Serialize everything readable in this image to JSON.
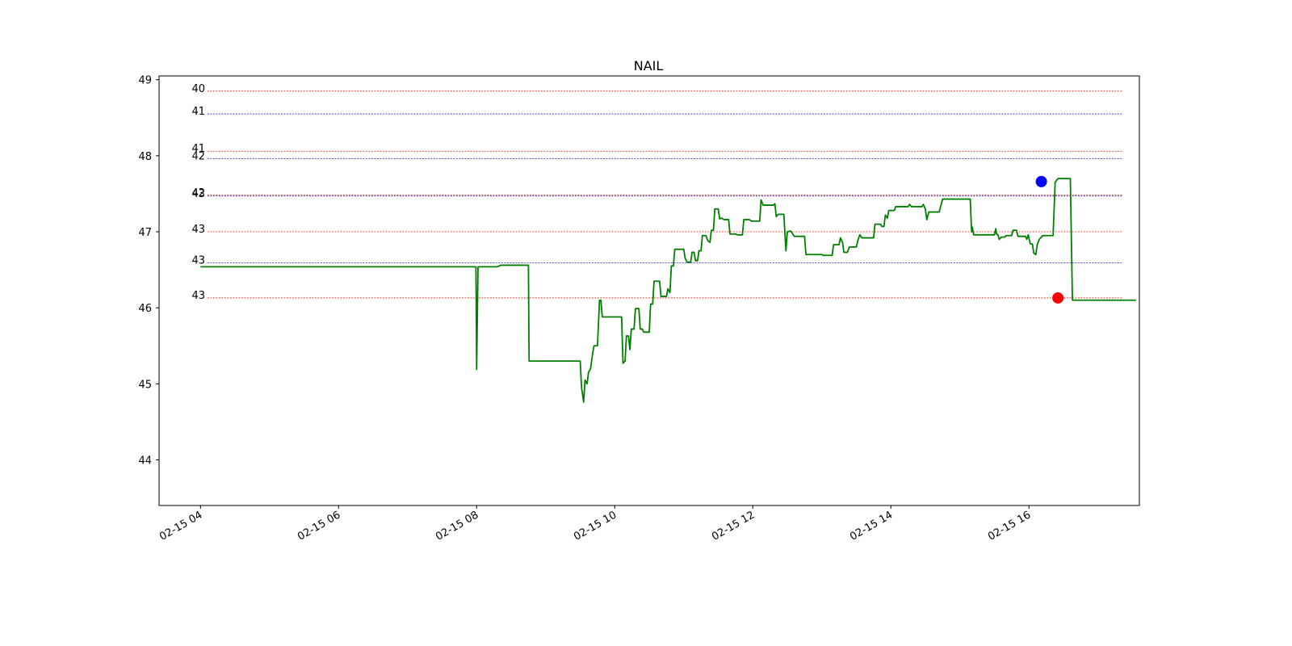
{
  "chart_data": {
    "type": "line",
    "title": "NAIL",
    "xlabel": "",
    "ylabel": "",
    "x_axis": {
      "type": "time",
      "date": "2025-02-15",
      "range_hours": [
        3.4,
        17.6
      ],
      "ticks": [
        {
          "hour": 4,
          "label": "02-15 04"
        },
        {
          "hour": 6,
          "label": "02-15 06"
        },
        {
          "hour": 8,
          "label": "02-15 08"
        },
        {
          "hour": 10,
          "label": "02-15 10"
        },
        {
          "hour": 12,
          "label": "02-15 12"
        },
        {
          "hour": 14,
          "label": "02-15 14"
        },
        {
          "hour": 16,
          "label": "02-15 16"
        }
      ]
    },
    "y_axis": {
      "range": [
        43.4,
        49.05
      ],
      "ticks": [
        44,
        45,
        46,
        47,
        48,
        49
      ]
    },
    "grid": false,
    "levels": [
      {
        "value": 48.85,
        "label": "40",
        "color": "#e0201b",
        "label_dy": 0
      },
      {
        "value": 48.55,
        "label": "41",
        "color": "#1f1fbf",
        "label_dy": 0
      },
      {
        "value": 48.06,
        "label": "41",
        "color": "#e0201b",
        "label_dy": 0
      },
      {
        "value": 47.96,
        "label": "42",
        "color": "#1f1fbf",
        "label_dy": 0
      },
      {
        "value": 47.48,
        "label": "42",
        "color": "#e0201b",
        "label_dy": 0
      },
      {
        "value": 47.47,
        "label": "43",
        "color": "#1f1fbf",
        "label_dy": 0
      },
      {
        "value": 47.0,
        "label": "43",
        "color": "#e0201b",
        "label_dy": 0
      },
      {
        "value": 46.59,
        "label": "43",
        "color": "#1f1fbf",
        "label_dy": 0
      },
      {
        "value": 46.13,
        "label": "43",
        "color": "#e0201b",
        "label_dy": 0
      }
    ],
    "series": [
      {
        "color": "#008000",
        "points": [
          [
            4.0,
            46.54
          ],
          [
            7.99,
            46.54
          ],
          [
            8.0,
            45.19
          ],
          [
            8.02,
            46.54
          ],
          [
            8.3,
            46.54
          ],
          [
            8.35,
            46.56
          ],
          [
            8.75,
            46.56
          ],
          [
            8.76,
            45.3
          ],
          [
            9.5,
            45.3
          ],
          [
            9.52,
            44.95
          ],
          [
            9.55,
            44.76
          ],
          [
            9.57,
            45.05
          ],
          [
            9.6,
            45.0
          ],
          [
            9.62,
            45.15
          ],
          [
            9.65,
            45.2
          ],
          [
            9.68,
            45.4
          ],
          [
            9.7,
            45.5
          ],
          [
            9.75,
            45.5
          ],
          [
            9.78,
            46.1
          ],
          [
            9.8,
            46.1
          ],
          [
            9.82,
            45.88
          ],
          [
            10.1,
            45.88
          ],
          [
            10.12,
            45.27
          ],
          [
            10.15,
            45.3
          ],
          [
            10.17,
            45.63
          ],
          [
            10.2,
            45.63
          ],
          [
            10.22,
            45.45
          ],
          [
            10.24,
            45.72
          ],
          [
            10.28,
            45.72
          ],
          [
            10.3,
            45.99
          ],
          [
            10.35,
            45.99
          ],
          [
            10.37,
            45.72
          ],
          [
            10.4,
            45.72
          ],
          [
            10.42,
            45.68
          ],
          [
            10.5,
            45.68
          ],
          [
            10.52,
            46.05
          ],
          [
            10.55,
            46.05
          ],
          [
            10.57,
            46.35
          ],
          [
            10.65,
            46.35
          ],
          [
            10.67,
            46.15
          ],
          [
            10.75,
            46.15
          ],
          [
            10.77,
            46.25
          ],
          [
            10.8,
            46.2
          ],
          [
            10.82,
            46.55
          ],
          [
            10.85,
            46.55
          ],
          [
            10.87,
            46.77
          ],
          [
            11.0,
            46.77
          ],
          [
            11.02,
            46.65
          ],
          [
            11.05,
            46.6
          ],
          [
            11.1,
            46.6
          ],
          [
            11.12,
            46.73
          ],
          [
            11.15,
            46.73
          ],
          [
            11.17,
            46.62
          ],
          [
            11.2,
            46.62
          ],
          [
            11.22,
            46.75
          ],
          [
            11.25,
            46.75
          ],
          [
            11.27,
            46.95
          ],
          [
            11.32,
            46.95
          ],
          [
            11.35,
            46.88
          ],
          [
            11.38,
            46.86
          ],
          [
            11.4,
            47.02
          ],
          [
            11.43,
            47.02
          ],
          [
            11.45,
            47.3
          ],
          [
            11.5,
            47.3
          ],
          [
            11.52,
            47.17
          ],
          [
            11.55,
            47.18
          ],
          [
            11.58,
            47.16
          ],
          [
            11.65,
            47.16
          ],
          [
            11.67,
            46.97
          ],
          [
            11.75,
            46.97
          ],
          [
            11.78,
            46.96
          ],
          [
            11.85,
            46.96
          ],
          [
            11.87,
            47.16
          ],
          [
            11.95,
            47.16
          ],
          [
            11.98,
            47.14
          ],
          [
            12.1,
            47.14
          ],
          [
            12.12,
            47.42
          ],
          [
            12.15,
            47.35
          ],
          [
            12.3,
            47.35
          ],
          [
            12.32,
            47.37
          ],
          [
            12.34,
            47.2
          ],
          [
            12.37,
            47.23
          ],
          [
            12.45,
            47.23
          ],
          [
            12.48,
            46.75
          ],
          [
            12.5,
            47.0
          ],
          [
            12.55,
            47.01
          ],
          [
            12.6,
            46.94
          ],
          [
            12.75,
            46.94
          ],
          [
            12.77,
            46.7
          ],
          [
            13.0,
            46.7
          ],
          [
            13.02,
            46.69
          ],
          [
            13.15,
            46.69
          ],
          [
            13.17,
            46.83
          ],
          [
            13.25,
            46.83
          ],
          [
            13.27,
            46.92
          ],
          [
            13.3,
            46.86
          ],
          [
            13.32,
            46.73
          ],
          [
            13.37,
            46.73
          ],
          [
            13.4,
            46.8
          ],
          [
            13.5,
            46.8
          ],
          [
            13.52,
            46.88
          ],
          [
            13.55,
            46.96
          ],
          [
            13.58,
            46.92
          ],
          [
            13.75,
            46.92
          ],
          [
            13.77,
            47.1
          ],
          [
            13.85,
            47.1
          ],
          [
            13.87,
            47.07
          ],
          [
            13.9,
            47.07
          ],
          [
            13.92,
            47.22
          ],
          [
            13.95,
            47.18
          ],
          [
            13.97,
            47.28
          ],
          [
            14.05,
            47.28
          ],
          [
            14.07,
            47.33
          ],
          [
            14.25,
            47.33
          ],
          [
            14.27,
            47.36
          ],
          [
            14.3,
            47.33
          ],
          [
            14.45,
            47.33
          ],
          [
            14.47,
            47.36
          ],
          [
            14.5,
            47.3
          ],
          [
            14.52,
            47.16
          ],
          [
            14.55,
            47.26
          ],
          [
            14.7,
            47.26
          ],
          [
            14.72,
            47.33
          ],
          [
            14.75,
            47.43
          ],
          [
            15.15,
            47.43
          ],
          [
            15.17,
            47.0
          ],
          [
            15.18,
            47.06
          ],
          [
            15.2,
            46.96
          ],
          [
            15.5,
            46.96
          ],
          [
            15.52,
            47.04
          ],
          [
            15.53,
            46.97
          ],
          [
            15.55,
            46.96
          ],
          [
            15.57,
            46.9
          ],
          [
            15.6,
            46.93
          ],
          [
            15.65,
            46.93
          ],
          [
            15.67,
            46.95
          ],
          [
            15.75,
            46.95
          ],
          [
            15.77,
            47.02
          ],
          [
            15.82,
            47.02
          ],
          [
            15.84,
            46.94
          ],
          [
            15.95,
            46.94
          ],
          [
            15.97,
            46.9
          ],
          [
            15.99,
            46.96
          ],
          [
            16.02,
            46.84
          ],
          [
            16.05,
            46.84
          ],
          [
            16.07,
            46.72
          ],
          [
            16.1,
            46.7
          ],
          [
            16.12,
            46.83
          ],
          [
            16.15,
            46.9
          ],
          [
            16.2,
            46.95
          ],
          [
            16.35,
            46.95
          ],
          [
            16.38,
            47.65
          ],
          [
            16.42,
            47.7
          ],
          [
            16.6,
            47.7
          ],
          [
            16.63,
            46.1
          ],
          [
            17.55,
            46.1
          ]
        ]
      }
    ],
    "markers": [
      {
        "x": 16.18,
        "y": 47.66,
        "color": "#0000ff"
      },
      {
        "x": 16.42,
        "y": 46.13,
        "color": "#ff0000"
      }
    ]
  }
}
